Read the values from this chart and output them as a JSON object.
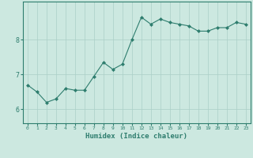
{
  "x": [
    0,
    1,
    2,
    3,
    4,
    5,
    6,
    7,
    8,
    9,
    10,
    11,
    12,
    13,
    14,
    15,
    16,
    17,
    18,
    19,
    20,
    21,
    22,
    23
  ],
  "y": [
    6.7,
    6.5,
    6.2,
    6.3,
    6.6,
    6.55,
    6.55,
    6.95,
    7.35,
    7.15,
    7.3,
    8.0,
    8.65,
    8.45,
    8.6,
    8.5,
    8.45,
    8.4,
    8.25,
    8.25,
    8.35,
    8.35,
    8.5,
    8.45
  ],
  "xlabel": "Humidex (Indice chaleur)",
  "ylim": [
    5.6,
    9.1
  ],
  "xlim": [
    -0.5,
    23.5
  ],
  "yticks": [
    6,
    7,
    8
  ],
  "xticks": [
    0,
    1,
    2,
    3,
    4,
    5,
    6,
    7,
    8,
    9,
    10,
    11,
    12,
    13,
    14,
    15,
    16,
    17,
    18,
    19,
    20,
    21,
    22,
    23
  ],
  "line_color": "#2e7d6e",
  "marker_color": "#2e7d6e",
  "bg_color": "#cce8e0",
  "grid_color": "#aacfc7",
  "axis_color": "#2e7d6e",
  "tick_color": "#2e7d6e",
  "label_color": "#2e7d6e"
}
